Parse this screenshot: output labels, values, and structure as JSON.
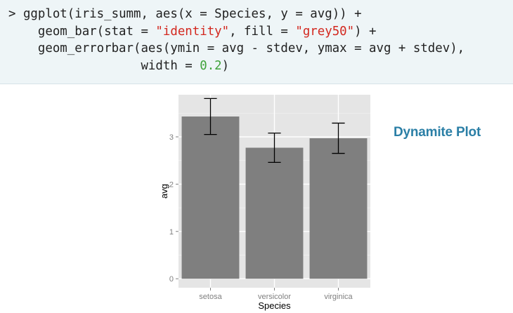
{
  "code": {
    "line1": {
      "prompt": "> ",
      "text": "ggplot(iris_summ, aes(x = Species, y = avg)) +"
    },
    "line2": {
      "pre": "    geom_bar(stat = ",
      "s1": "\"identity\"",
      "mid": ", fill = ",
      "s2": "\"grey50\"",
      "post": ") +"
    },
    "line3": {
      "text": "    geom_errorbar(aes(ymin = avg - stdev, ymax = avg + stdev),"
    },
    "line4": {
      "pre": "                  width = ",
      "n1": "0.2",
      "post": ")"
    }
  },
  "side_title": "Dynamite Plot",
  "colors": {
    "panel_bg": "#e5e5e5",
    "bar_fill": "#7f7f7f",
    "error_bar": "#000000",
    "title": "#2b7fa6",
    "string": "#d3281f",
    "number": "#3fa23a"
  },
  "chart_data": {
    "type": "bar",
    "categories": [
      "setosa",
      "versicolor",
      "virginica"
    ],
    "values": [
      3.43,
      2.77,
      2.97
    ],
    "errors": [
      0.38,
      0.31,
      0.32
    ],
    "xlabel": "Species",
    "ylabel": "avg",
    "yticks": [
      0,
      1,
      2,
      3
    ],
    "ylim": [
      -0.19,
      3.89
    ],
    "grid": true
  }
}
